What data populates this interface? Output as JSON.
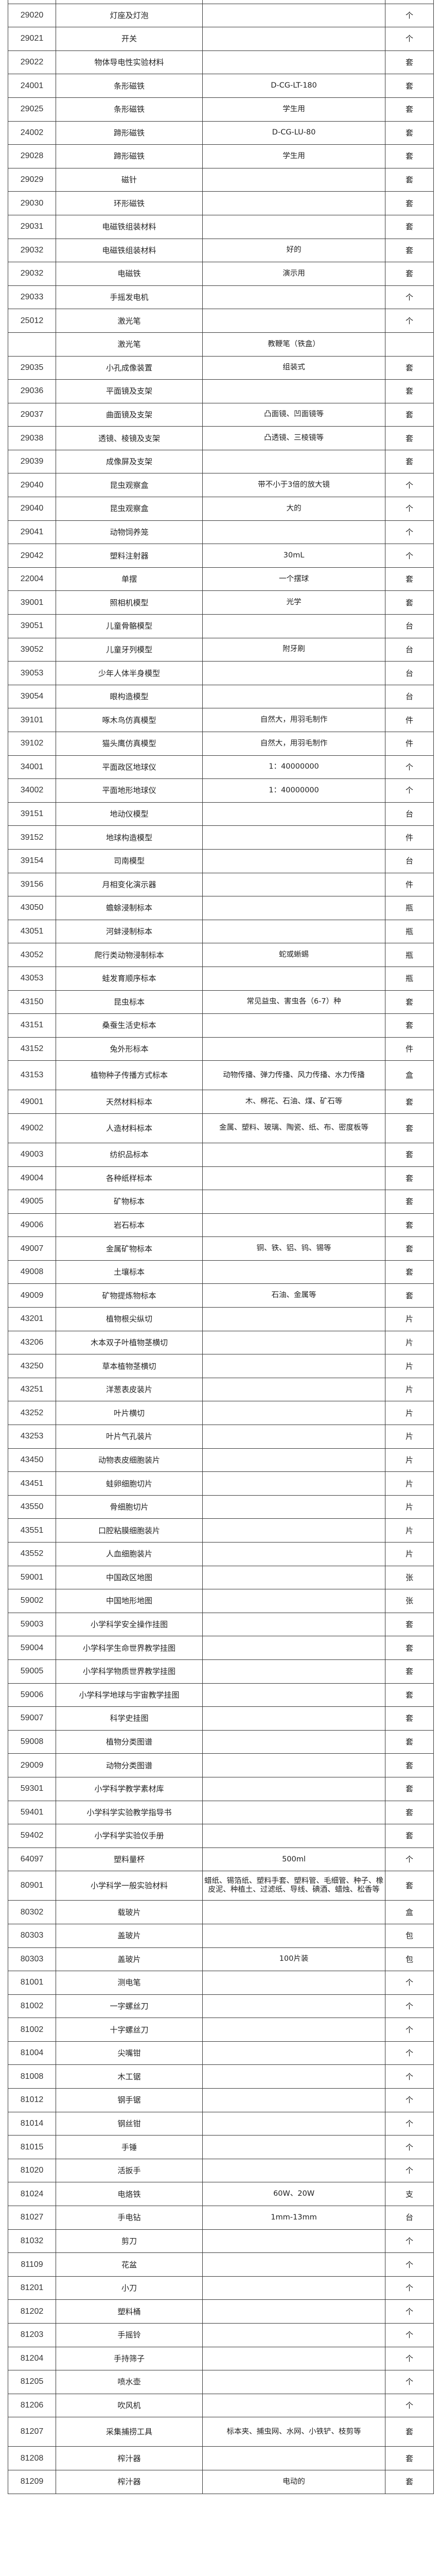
{
  "rows": [
    {
      "code": "29020",
      "name": "灯座及灯泡",
      "spec": "",
      "unit": "个"
    },
    {
      "code": "29021",
      "name": "开关",
      "spec": "",
      "unit": "个"
    },
    {
      "code": "29022",
      "name": "物体导电性实验材料",
      "spec": "",
      "unit": "套"
    },
    {
      "code": "24001",
      "name": "条形磁铁",
      "spec": "D-CG-LT-180",
      "unit": "套"
    },
    {
      "code": "29025",
      "name": "条形磁铁",
      "spec": "学生用",
      "unit": "套"
    },
    {
      "code": "24002",
      "name": "蹄形磁铁",
      "spec": "D-CG-LU-80",
      "unit": "套"
    },
    {
      "code": "29028",
      "name": "蹄形磁铁",
      "spec": "学生用",
      "unit": "套"
    },
    {
      "code": "29029",
      "name": "磁针",
      "spec": "",
      "unit": "套"
    },
    {
      "code": "29030",
      "name": "环形磁铁",
      "spec": "",
      "unit": "套"
    },
    {
      "code": "29031",
      "name": "电磁铁组装材料",
      "spec": "",
      "unit": "套"
    },
    {
      "code": "29032",
      "name": "电磁铁组装材料",
      "spec": "好的",
      "unit": "套"
    },
    {
      "code": "29032",
      "name": "电磁铁",
      "spec": "演示用",
      "unit": "套"
    },
    {
      "code": "29033",
      "name": "手摇发电机",
      "spec": "",
      "unit": "个"
    },
    {
      "code": "25012",
      "name": "激光笔",
      "spec": "",
      "unit": "个"
    },
    {
      "code": "",
      "name": "激光笔",
      "spec": "教鞭笔（铁盒）",
      "unit": ""
    },
    {
      "code": "29035",
      "name": "小孔成像装置",
      "spec": "组装式",
      "unit": "套"
    },
    {
      "code": "29036",
      "name": "平面镜及支架",
      "spec": "",
      "unit": "套"
    },
    {
      "code": "29037",
      "name": "曲面镜及支架",
      "spec": "凸面镜、凹面镜等",
      "unit": "套"
    },
    {
      "code": "29038",
      "name": "透镜、棱镜及支架",
      "spec": "凸透镜、三棱镜等",
      "unit": "套"
    },
    {
      "code": "29039",
      "name": "成像屏及支架",
      "spec": "",
      "unit": "套"
    },
    {
      "code": "29040",
      "name": "昆虫观察盒",
      "spec": "带不小于3倍的放大镜",
      "unit": "个"
    },
    {
      "code": "29040",
      "name": "昆虫观察盒",
      "spec": "大的",
      "unit": "个"
    },
    {
      "code": "29041",
      "name": "动物饲养笼",
      "spec": "",
      "unit": "个"
    },
    {
      "code": "29042",
      "name": "塑料注射器",
      "spec": "30mL",
      "unit": "个"
    },
    {
      "code": "22004",
      "name": "单摆",
      "spec": "一个摆球",
      "unit": "套"
    },
    {
      "code": "39001",
      "name": "照相机模型",
      "spec": "光学",
      "unit": "套"
    },
    {
      "code": "39051",
      "name": "儿童骨骼模型",
      "spec": "",
      "unit": "台"
    },
    {
      "code": "39052",
      "name": "儿童牙列模型",
      "spec": "附牙刷",
      "unit": "台"
    },
    {
      "code": "39053",
      "name": "少年人体半身模型",
      "spec": "",
      "unit": "台"
    },
    {
      "code": "39054",
      "name": "眼构造模型",
      "spec": "",
      "unit": "台"
    },
    {
      "code": "39101",
      "name": "啄木鸟仿真模型",
      "spec": "自然大，用羽毛制作",
      "unit": "件"
    },
    {
      "code": "39102",
      "name": "猫头鹰仿真模型",
      "spec": "自然大，用羽毛制作",
      "unit": "件"
    },
    {
      "code": "34001",
      "name": "平面政区地球仪",
      "spec": "1：40000000",
      "unit": "个"
    },
    {
      "code": "34002",
      "name": "平面地形地球仪",
      "spec": "1：40000000",
      "unit": "个"
    },
    {
      "code": "39151",
      "name": "地动仪模型",
      "spec": "",
      "unit": "台"
    },
    {
      "code": "39152",
      "name": "地球构造模型",
      "spec": "",
      "unit": "件"
    },
    {
      "code": "39154",
      "name": "司南模型",
      "spec": "",
      "unit": "台"
    },
    {
      "code": "39156",
      "name": "月相变化演示器",
      "spec": "",
      "unit": "件"
    },
    {
      "code": "43050",
      "name": "蟾蜍浸制标本",
      "spec": "",
      "unit": "瓶"
    },
    {
      "code": "43051",
      "name": "河蚌浸制标本",
      "spec": "",
      "unit": "瓶"
    },
    {
      "code": "43052",
      "name": "爬行类动物浸制标本",
      "spec": "蛇或蜥蜴",
      "unit": "瓶"
    },
    {
      "code": "43053",
      "name": "蛙发育顺序标本",
      "spec": "",
      "unit": "瓶"
    },
    {
      "code": "43150",
      "name": "昆虫标本",
      "spec": "常见益虫、害虫各（6-7）种",
      "unit": "套"
    },
    {
      "code": "43151",
      "name": "桑蚕生活史标本",
      "spec": "",
      "unit": "套"
    },
    {
      "code": "43152",
      "name": "兔外形标本",
      "spec": "",
      "unit": "件"
    },
    {
      "code": "43153",
      "name": "植物种子传播方式标本",
      "spec": "动物传播、弹力传播、风力传播、水力传播",
      "unit": "盒",
      "tall": true
    },
    {
      "code": "49001",
      "name": "天然材料标本",
      "spec": "木、棉花、石油、煤、矿石等",
      "unit": "套"
    },
    {
      "code": "49002",
      "name": "人造材料标本",
      "spec": "金属、塑料、玻璃、陶瓷、纸、布、密度板等",
      "unit": "套",
      "tall": true
    },
    {
      "code": "49003",
      "name": "纺织品标本",
      "spec": "",
      "unit": "套"
    },
    {
      "code": "49004",
      "name": "各种纸样标本",
      "spec": "",
      "unit": "套"
    },
    {
      "code": "49005",
      "name": "矿物标本",
      "spec": "",
      "unit": "套"
    },
    {
      "code": "49006",
      "name": "岩石标本",
      "spec": "",
      "unit": "套"
    },
    {
      "code": "49007",
      "name": "金属矿物标本",
      "spec": "铜、铁、铝、钨、锡等",
      "unit": "套"
    },
    {
      "code": "49008",
      "name": "土壤标本",
      "spec": "",
      "unit": "套"
    },
    {
      "code": "49009",
      "name": "矿物提炼物标本",
      "spec": "石油、金属等",
      "unit": "套"
    },
    {
      "code": "43201",
      "name": "植物根尖纵切",
      "spec": "",
      "unit": "片"
    },
    {
      "code": "43206",
      "name": "木本双子叶植物茎横切",
      "spec": "",
      "unit": "片"
    },
    {
      "code": "43250",
      "name": "草本植物茎横切",
      "spec": "",
      "unit": "片"
    },
    {
      "code": "43251",
      "name": "洋葱表皮装片",
      "spec": "",
      "unit": "片"
    },
    {
      "code": "43252",
      "name": "叶片横切",
      "spec": "",
      "unit": "片"
    },
    {
      "code": "43253",
      "name": "叶片气孔装片",
      "spec": "",
      "unit": "片"
    },
    {
      "code": "43450",
      "name": "动物表皮细胞装片",
      "spec": "",
      "unit": "片"
    },
    {
      "code": "43451",
      "name": "蛙卵细胞切片",
      "spec": "",
      "unit": "片"
    },
    {
      "code": "43550",
      "name": "骨细胞切片",
      "spec": "",
      "unit": "片"
    },
    {
      "code": "43551",
      "name": "口腔粘膜细胞装片",
      "spec": "",
      "unit": "片"
    },
    {
      "code": "43552",
      "name": "人血细胞装片",
      "spec": "",
      "unit": "片"
    },
    {
      "code": "59001",
      "name": "中国政区地图",
      "spec": "",
      "unit": "张"
    },
    {
      "code": "59002",
      "name": "中国地形地图",
      "spec": "",
      "unit": "张"
    },
    {
      "code": "59003",
      "name": "小学科学安全操作挂图",
      "spec": "",
      "unit": "套"
    },
    {
      "code": "59004",
      "name": "小学科学生命世界教学挂图",
      "spec": "",
      "unit": "套"
    },
    {
      "code": "59005",
      "name": "小学科学物质世界教学挂图",
      "spec": "",
      "unit": "套"
    },
    {
      "code": "59006",
      "name": "小学科学地球与宇宙教学挂图",
      "spec": "",
      "unit": "套"
    },
    {
      "code": "59007",
      "name": "科学史挂图",
      "spec": "",
      "unit": "套"
    },
    {
      "code": "59008",
      "name": "植物分类图谱",
      "spec": "",
      "unit": "套"
    },
    {
      "code": "29009",
      "name": "动物分类图谱",
      "spec": "",
      "unit": "套"
    },
    {
      "code": "59301",
      "name": "小学科学教学素材库",
      "spec": "",
      "unit": "套"
    },
    {
      "code": "59401",
      "name": "小学科学实验教学指导书",
      "spec": "",
      "unit": "套"
    },
    {
      "code": "59402",
      "name": "小学科学实验仪手册",
      "spec": "",
      "unit": "套"
    },
    {
      "code": "64097",
      "name": "塑料量杯",
      "spec": "500ml",
      "unit": "个"
    },
    {
      "code": "80901",
      "name": "小学科学一般实验材料",
      "spec": "蜡纸、锡箔纸、塑料手套、塑料管、毛细管、种子、橡皮泥、种植土、过滤纸、导线、碘酒、蜡烛、松香等",
      "unit": "套",
      "tall": true
    },
    {
      "code": "80302",
      "name": "载玻片",
      "spec": "",
      "unit": "盒"
    },
    {
      "code": "80303",
      "name": "盖玻片",
      "spec": "",
      "unit": "包"
    },
    {
      "code": "80303",
      "name": "盖玻片",
      "spec": "100片装",
      "unit": "包"
    },
    {
      "code": "81001",
      "name": "测电笔",
      "spec": "",
      "unit": "个"
    },
    {
      "code": "81002",
      "name": "一字螺丝刀",
      "spec": "",
      "unit": "个"
    },
    {
      "code": "81002",
      "name": "十字螺丝刀",
      "spec": "",
      "unit": "个"
    },
    {
      "code": "81004",
      "name": "尖嘴钳",
      "spec": "",
      "unit": "个"
    },
    {
      "code": "81008",
      "name": "木工锯",
      "spec": "",
      "unit": "个"
    },
    {
      "code": "81012",
      "name": "钢手锯",
      "spec": "",
      "unit": "个"
    },
    {
      "code": "81014",
      "name": "钢丝钳",
      "spec": "",
      "unit": "个"
    },
    {
      "code": "81015",
      "name": "手锤",
      "spec": "",
      "unit": "个"
    },
    {
      "code": "81020",
      "name": "活扳手",
      "spec": "",
      "unit": "个"
    },
    {
      "code": "81024",
      "name": "电烙铁",
      "spec": "60W、20W",
      "unit": "支"
    },
    {
      "code": "81027",
      "name": "手电钻",
      "spec": "1mm-13mm",
      "unit": "台"
    },
    {
      "code": "81032",
      "name": "剪刀",
      "spec": "",
      "unit": "个"
    },
    {
      "code": "81109",
      "name": "花盆",
      "spec": "",
      "unit": "个"
    },
    {
      "code": "81201",
      "name": "小刀",
      "spec": "",
      "unit": "个"
    },
    {
      "code": "81202",
      "name": "塑料桶",
      "spec": "",
      "unit": "个"
    },
    {
      "code": "81203",
      "name": "手摇铃",
      "spec": "",
      "unit": "个"
    },
    {
      "code": "81204",
      "name": "手持筛子",
      "spec": "",
      "unit": "个"
    },
    {
      "code": "81205",
      "name": "喷水壶",
      "spec": "",
      "unit": "个"
    },
    {
      "code": "81206",
      "name": "吹风机",
      "spec": "",
      "unit": "个"
    },
    {
      "code": "81207",
      "name": "采集捕捞工具",
      "spec": "标本夹、捕虫网、水网、小铁铲、枝剪等",
      "unit": "套",
      "tall": true
    },
    {
      "code": "81208",
      "name": "榨汁器",
      "spec": "",
      "unit": "套"
    },
    {
      "code": "81209",
      "name": "榨汁器",
      "spec": "电动的",
      "unit": "套"
    }
  ]
}
